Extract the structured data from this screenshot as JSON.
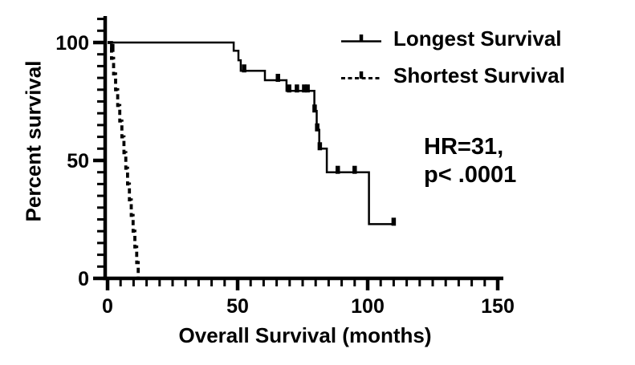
{
  "figure": {
    "background_color": "#ffffff",
    "ink_color": "#000000"
  },
  "chart_data": {
    "type": "line",
    "subtype": "kaplan-meier-step",
    "title": "",
    "xlabel": "Overall Survival (months)",
    "ylabel": "Percent survival",
    "xlim": [
      0,
      150
    ],
    "ylim": [
      0,
      100
    ],
    "x_major_ticks": [
      0,
      50,
      100,
      150
    ],
    "y_major_ticks": [
      0,
      50,
      100
    ],
    "x_minor_tick_step": 5,
    "y_minor_tick_step": 5,
    "grid": false,
    "legend_position": "top-right",
    "annotation": {
      "line1": "HR=31,",
      "line2": "p< .0001"
    },
    "series": [
      {
        "name": "Longest Survival",
        "line_style": "solid",
        "color": "#000000",
        "steps": [
          [
            0,
            100
          ],
          [
            48.5,
            100
          ],
          [
            48.5,
            96.5
          ],
          [
            50.3,
            96.5
          ],
          [
            50.3,
            92.5
          ],
          [
            51.2,
            92.5
          ],
          [
            51.2,
            88
          ],
          [
            60.5,
            88
          ],
          [
            60.5,
            84
          ],
          [
            68.8,
            84
          ],
          [
            68.8,
            79.5
          ],
          [
            79.5,
            79.5
          ],
          [
            79.5,
            71
          ],
          [
            80.4,
            71
          ],
          [
            80.4,
            63
          ],
          [
            81.4,
            63
          ],
          [
            81.4,
            55
          ],
          [
            84.3,
            55
          ],
          [
            84.3,
            45
          ],
          [
            100.5,
            45
          ],
          [
            100.5,
            23
          ],
          [
            110.5,
            23
          ]
        ],
        "censor_marks": [
          [
            52.5,
            88
          ],
          [
            65.5,
            84
          ],
          [
            69.8,
            79.5
          ],
          [
            72.8,
            79.5
          ],
          [
            75.6,
            79.5
          ],
          [
            76.9,
            79.5
          ],
          [
            79.6,
            71
          ],
          [
            80.6,
            63
          ],
          [
            81.6,
            55
          ],
          [
            88.5,
            45
          ],
          [
            95,
            45
          ],
          [
            110,
            23
          ]
        ]
      },
      {
        "name": "Shortest Survival",
        "line_style": "dashed",
        "color": "#000000",
        "steps": [
          [
            0,
            100
          ],
          [
            1.5,
            100
          ],
          [
            1.5,
            93.3
          ],
          [
            2.3,
            93.3
          ],
          [
            2.3,
            86.7
          ],
          [
            3.1,
            86.7
          ],
          [
            3.1,
            80
          ],
          [
            3.9,
            80
          ],
          [
            3.9,
            73.3
          ],
          [
            4.7,
            73.3
          ],
          [
            4.7,
            66.7
          ],
          [
            5.5,
            66.7
          ],
          [
            5.5,
            60
          ],
          [
            6.3,
            60
          ],
          [
            6.3,
            53.3
          ],
          [
            7,
            53.3
          ],
          [
            7,
            46.7
          ],
          [
            7.7,
            46.7
          ],
          [
            7.7,
            40
          ],
          [
            8.4,
            40
          ],
          [
            8.4,
            33.3
          ],
          [
            9.1,
            33.3
          ],
          [
            9.1,
            26.7
          ],
          [
            9.8,
            26.7
          ],
          [
            9.8,
            20
          ],
          [
            10.5,
            20
          ],
          [
            10.5,
            13.3
          ],
          [
            11.2,
            13.3
          ],
          [
            11.2,
            6.7
          ],
          [
            11.8,
            6.7
          ],
          [
            11.8,
            0
          ]
        ],
        "censor_marks": [
          [
            1.8,
            96.7
          ]
        ]
      }
    ]
  }
}
